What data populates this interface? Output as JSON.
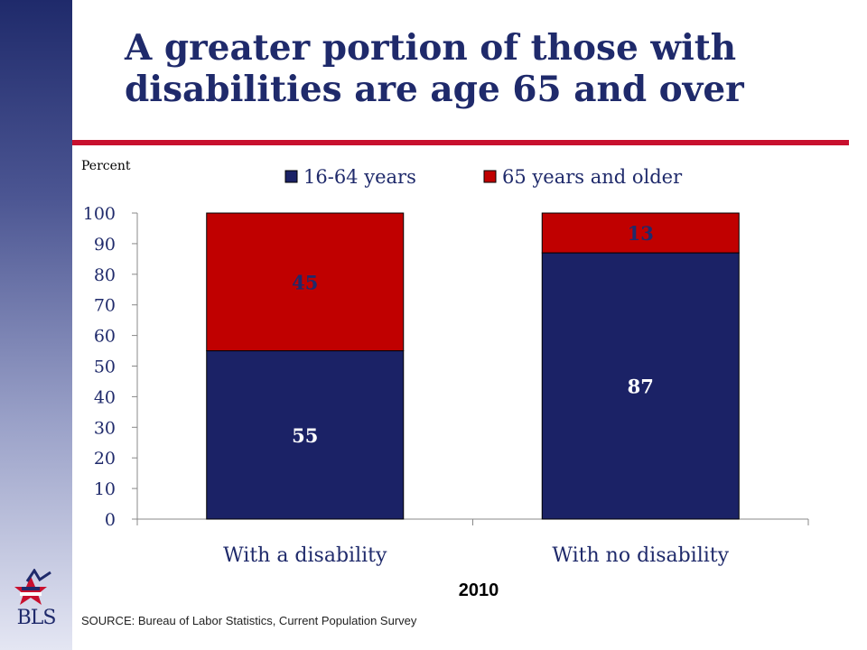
{
  "slide": {
    "title_line1": "A greater portion of those with",
    "title_line2": "disabilities are age 65 and over",
    "year": "2010",
    "source": "SOURCE:  Bureau of Labor Statistics, Current Population Survey",
    "logo_text": "BLS"
  },
  "colors": {
    "navy": "#1b2266",
    "red": "#c00000",
    "accent_rule": "#c8102e"
  },
  "chart_data": {
    "type": "bar",
    "stacked": true,
    "title": "",
    "xlabel": "",
    "ylabel": "Percent",
    "ylim": [
      0,
      100
    ],
    "yticks": [
      0,
      10,
      20,
      30,
      40,
      50,
      60,
      70,
      80,
      90,
      100
    ],
    "categories": [
      "With a disability",
      "With no disability"
    ],
    "series": [
      {
        "name": "16-64 years",
        "values": [
          55,
          87
        ],
        "labels": [
          "55",
          "87"
        ],
        "color": "#1b2266"
      },
      {
        "name": "65 years and older",
        "values": [
          45,
          13
        ],
        "labels": [
          "45",
          "13"
        ],
        "color": "#c00000"
      }
    ],
    "legend": "top",
    "grid": false
  }
}
